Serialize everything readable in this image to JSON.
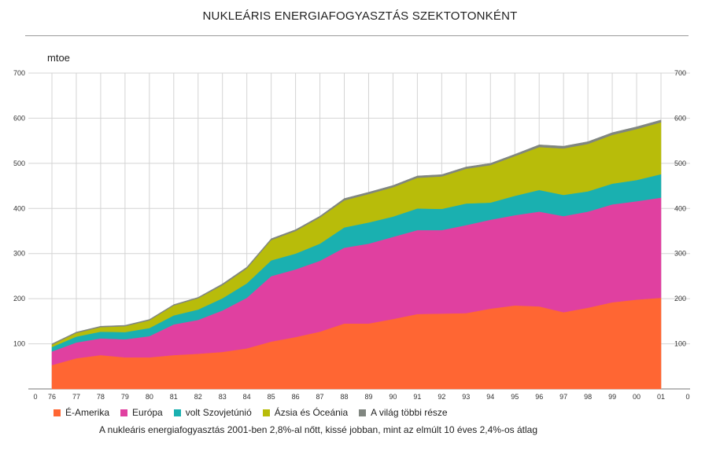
{
  "title": "NUKLEÁRIS ENERGIAFOGYASZTÁS SZEKTOTONKÉNT",
  "unit": "mtoe",
  "caption": "A nukleáris energiafogyasztás 2001-ben 2,8%-al nőtt, kissé jobban, mint az elmúlt 10 éves 2,4%-os átlag",
  "chart_data": {
    "type": "area",
    "stacked": true,
    "categories": [
      "76",
      "77",
      "78",
      "79",
      "80",
      "81",
      "82",
      "83",
      "84",
      "85",
      "86",
      "87",
      "88",
      "89",
      "90",
      "91",
      "92",
      "93",
      "94",
      "95",
      "96",
      "97",
      "98",
      "99",
      "00",
      "01"
    ],
    "x_origin_label": "0",
    "ylim": [
      0,
      700
    ],
    "yticks": [
      100,
      200,
      300,
      400,
      500,
      600,
      700
    ],
    "grid": true,
    "legend_position": "bottom",
    "series": [
      {
        "name": "É-Amerika",
        "color": "#ff6633",
        "values": [
          53,
          68,
          75,
          70,
          70,
          75,
          78,
          82,
          90,
          105,
          115,
          127,
          145,
          145,
          155,
          166,
          167,
          168,
          178,
          185,
          183,
          170,
          180,
          192,
          198,
          202
        ]
      },
      {
        "name": "Európa",
        "color": "#e040a0",
        "values": [
          30,
          35,
          37,
          40,
          47,
          68,
          75,
          92,
          112,
          145,
          150,
          157,
          168,
          177,
          182,
          186,
          185,
          195,
          197,
          200,
          210,
          213,
          213,
          217,
          218,
          222
        ]
      },
      {
        "name": "volt Szovjetúnió",
        "color": "#1ab0b0",
        "values": [
          10,
          13,
          15,
          16,
          18,
          20,
          23,
          27,
          32,
          35,
          35,
          38,
          45,
          47,
          45,
          48,
          47,
          48,
          38,
          43,
          48,
          47,
          45,
          46,
          47,
          52
        ]
      },
      {
        "name": "Ázsia és Óceánia",
        "color": "#b8bc0a",
        "values": [
          5,
          8,
          10,
          13,
          17,
          22,
          25,
          29,
          33,
          45,
          50,
          58,
          60,
          63,
          65,
          68,
          72,
          77,
          83,
          88,
          95,
          103,
          105,
          108,
          113,
          115
        ]
      },
      {
        "name": "A világ többi része",
        "color": "#808680",
        "values": [
          2,
          2,
          2,
          2,
          2,
          2,
          2,
          3,
          3,
          3,
          3,
          3,
          4,
          4,
          4,
          4,
          4,
          4,
          4,
          4,
          5,
          5,
          5,
          5,
          5,
          5
        ]
      }
    ]
  }
}
